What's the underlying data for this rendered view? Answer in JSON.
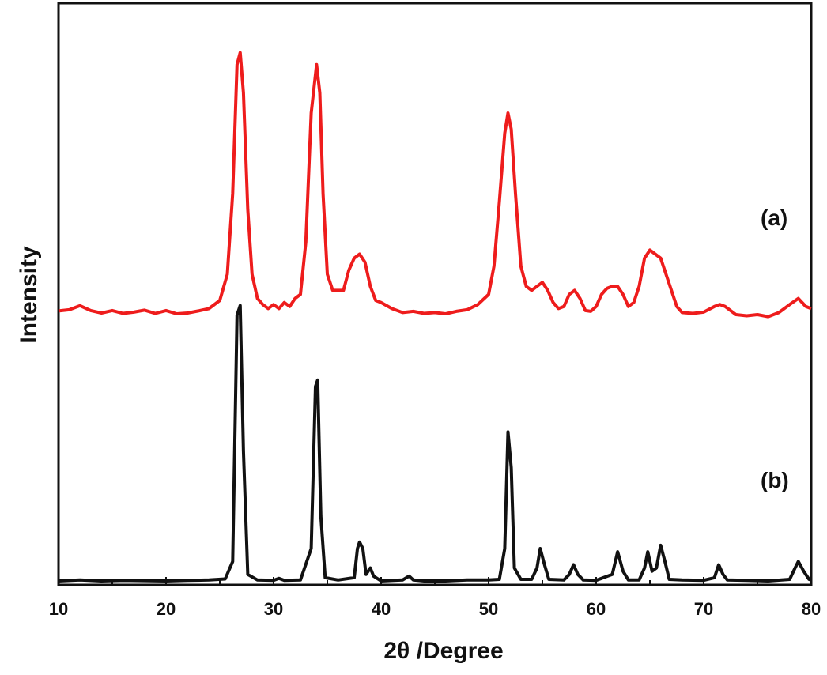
{
  "chart_data": {
    "type": "line",
    "title": "",
    "xlabel": "2θ /Degree",
    "ylabel": "Intensity",
    "xlim": [
      10,
      80
    ],
    "x_ticks": [
      10,
      20,
      30,
      40,
      50,
      60,
      70,
      80
    ],
    "y_ticks_shown": false,
    "grid": false,
    "legend": "none",
    "series": [
      {
        "name": "(a)",
        "color": "#ee1c1c",
        "points": [
          [
            10,
            0.9
          ],
          [
            11,
            1.2
          ],
          [
            12,
            2.2
          ],
          [
            13,
            1.0
          ],
          [
            14,
            0.4
          ],
          [
            15,
            1.0
          ],
          [
            16,
            0.3
          ],
          [
            17,
            0.6
          ],
          [
            18,
            1.1
          ],
          [
            19,
            0.3
          ],
          [
            20,
            1.0
          ],
          [
            21,
            0.2
          ],
          [
            22,
            0.4
          ],
          [
            23,
            0.9
          ],
          [
            24,
            1.5
          ],
          [
            25,
            3.5
          ],
          [
            25.7,
            10
          ],
          [
            26.2,
            30
          ],
          [
            26.6,
            62
          ],
          [
            26.9,
            65
          ],
          [
            27.2,
            55
          ],
          [
            27.6,
            26
          ],
          [
            28,
            10
          ],
          [
            28.5,
            4
          ],
          [
            29,
            2.5
          ],
          [
            29.5,
            1.5
          ],
          [
            30,
            2.5
          ],
          [
            30.5,
            1.5
          ],
          [
            31,
            3
          ],
          [
            31.5,
            2
          ],
          [
            32,
            4
          ],
          [
            32.5,
            5
          ],
          [
            33,
            18
          ],
          [
            33.5,
            50
          ],
          [
            34,
            62
          ],
          [
            34.3,
            55
          ],
          [
            34.6,
            30
          ],
          [
            35,
            10
          ],
          [
            35.5,
            6
          ],
          [
            36,
            6
          ],
          [
            36.5,
            6
          ],
          [
            37,
            11
          ],
          [
            37.5,
            14
          ],
          [
            38,
            15
          ],
          [
            38.5,
            13
          ],
          [
            39,
            7
          ],
          [
            39.5,
            3.5
          ],
          [
            40,
            3
          ],
          [
            41,
            1.5
          ],
          [
            42,
            0.5
          ],
          [
            43,
            0.8
          ],
          [
            44,
            0.3
          ],
          [
            45,
            0.5
          ],
          [
            46,
            0.2
          ],
          [
            47,
            0.8
          ],
          [
            48,
            1.2
          ],
          [
            49,
            2.5
          ],
          [
            50,
            5
          ],
          [
            50.5,
            12
          ],
          [
            51,
            28
          ],
          [
            51.5,
            45
          ],
          [
            51.8,
            50
          ],
          [
            52.1,
            46
          ],
          [
            52.5,
            30
          ],
          [
            53,
            12
          ],
          [
            53.5,
            7
          ],
          [
            54,
            6
          ],
          [
            54.5,
            7
          ],
          [
            55,
            8
          ],
          [
            55.5,
            6
          ],
          [
            56,
            3
          ],
          [
            56.5,
            1.5
          ],
          [
            57,
            2
          ],
          [
            57.5,
            5
          ],
          [
            58,
            6
          ],
          [
            58.5,
            4
          ],
          [
            59,
            1
          ],
          [
            59.5,
            0.8
          ],
          [
            60,
            2
          ],
          [
            60.5,
            5
          ],
          [
            61,
            6.5
          ],
          [
            61.5,
            7
          ],
          [
            62,
            7
          ],
          [
            62.5,
            5
          ],
          [
            63,
            2
          ],
          [
            63.5,
            3
          ],
          [
            64,
            7
          ],
          [
            64.5,
            14
          ],
          [
            65,
            16
          ],
          [
            65.5,
            15
          ],
          [
            66,
            14
          ],
          [
            66.5,
            10
          ],
          [
            67,
            6
          ],
          [
            67.5,
            2
          ],
          [
            68,
            0.5
          ],
          [
            69,
            0.3
          ],
          [
            70,
            0.6
          ],
          [
            71,
            2
          ],
          [
            71.5,
            2.5
          ],
          [
            72,
            2
          ],
          [
            73,
            0
          ],
          [
            74,
            -0.3
          ],
          [
            75,
            0
          ],
          [
            76,
            -0.5
          ],
          [
            77,
            0.5
          ],
          [
            78,
            2.5
          ],
          [
            78.8,
            4
          ],
          [
            79.5,
            2
          ],
          [
            80,
            1.5
          ]
        ]
      },
      {
        "name": "(b)",
        "color": "#111111",
        "points": [
          [
            10,
            0
          ],
          [
            12,
            0.3
          ],
          [
            14,
            0
          ],
          [
            16,
            0.2
          ],
          [
            18,
            0.1
          ],
          [
            20,
            0
          ],
          [
            22,
            0.2
          ],
          [
            24,
            0.3
          ],
          [
            25.5,
            0.6
          ],
          [
            26.2,
            6
          ],
          [
            26.6,
            82
          ],
          [
            26.9,
            85
          ],
          [
            27.2,
            40
          ],
          [
            27.6,
            2
          ],
          [
            28.5,
            0.3
          ],
          [
            30,
            0.2
          ],
          [
            30.5,
            0.8
          ],
          [
            31,
            0.2
          ],
          [
            32.5,
            0.3
          ],
          [
            33.5,
            10
          ],
          [
            33.9,
            60
          ],
          [
            34.1,
            62
          ],
          [
            34.4,
            20
          ],
          [
            34.8,
            1
          ],
          [
            36,
            0.3
          ],
          [
            37.5,
            1
          ],
          [
            37.8,
            10
          ],
          [
            38,
            12
          ],
          [
            38.3,
            10
          ],
          [
            38.6,
            2
          ],
          [
            39,
            4
          ],
          [
            39.3,
            1.5
          ],
          [
            40,
            0
          ],
          [
            42,
            0.3
          ],
          [
            42.6,
            1.5
          ],
          [
            43,
            0.3
          ],
          [
            44,
            0
          ],
          [
            46,
            0
          ],
          [
            48,
            0.3
          ],
          [
            50,
            0.3
          ],
          [
            51,
            0.5
          ],
          [
            51.5,
            10
          ],
          [
            51.8,
            46
          ],
          [
            52.1,
            35
          ],
          [
            52.4,
            4
          ],
          [
            53,
            0.5
          ],
          [
            54,
            0.5
          ],
          [
            54.5,
            4
          ],
          [
            54.8,
            10
          ],
          [
            55.2,
            5
          ],
          [
            55.6,
            0.5
          ],
          [
            57,
            0.3
          ],
          [
            57.5,
            2
          ],
          [
            57.9,
            5
          ],
          [
            58.3,
            2
          ],
          [
            58.8,
            0.3
          ],
          [
            60,
            0.2
          ],
          [
            61.5,
            2
          ],
          [
            62,
            9
          ],
          [
            62.5,
            3
          ],
          [
            63,
            0.3
          ],
          [
            64,
            0.3
          ],
          [
            64.5,
            4
          ],
          [
            64.8,
            9
          ],
          [
            65.2,
            3
          ],
          [
            65.6,
            4
          ],
          [
            66,
            11
          ],
          [
            66.4,
            6
          ],
          [
            66.8,
            0.5
          ],
          [
            68,
            0.3
          ],
          [
            70,
            0.2
          ],
          [
            71,
            1
          ],
          [
            71.4,
            5
          ],
          [
            71.8,
            2
          ],
          [
            72.2,
            0.3
          ],
          [
            74,
            0.2
          ],
          [
            76,
            0
          ],
          [
            78,
            0.5
          ],
          [
            78.5,
            4
          ],
          [
            78.8,
            6
          ],
          [
            79.3,
            3
          ],
          [
            79.8,
            0.5
          ],
          [
            80,
            0.3
          ]
        ]
      }
    ]
  }
}
